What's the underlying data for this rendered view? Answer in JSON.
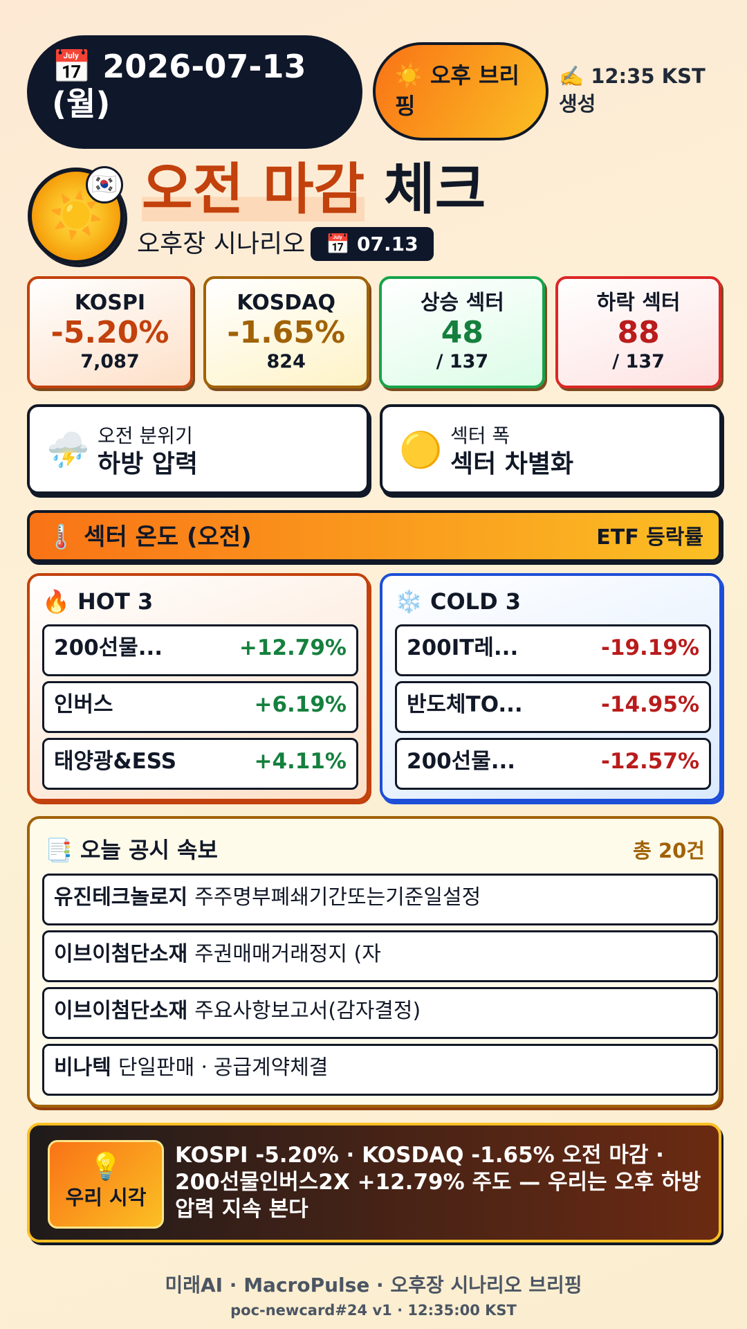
{
  "header": {
    "date": "📅 2026-07-13 (월)",
    "session": "☀️ 오후 브리핑",
    "generated": "✍️ 12:35 KST 생성"
  },
  "hero": {
    "icon": "☀️",
    "flag": "🇰🇷",
    "title_highlight": "오전 마감",
    "title_rest": "체크",
    "subtitle": "오후장 시나리오",
    "date_badge": "📅 07.13"
  },
  "stats": [
    {
      "name": "KOSPI",
      "change": "-5.20%",
      "value": "7,087"
    },
    {
      "name": "KOSDAQ",
      "change": "-1.65%",
      "value": "824"
    },
    {
      "name": "상승 섹터",
      "change": "48",
      "value": "/ 137"
    },
    {
      "name": "하락 섹터",
      "change": "88",
      "value": "/ 137"
    }
  ],
  "mood": [
    {
      "icon": "⛈️",
      "label": "오전 분위기",
      "value": "하방 압력"
    },
    {
      "icon": "🟡",
      "label": "섹터 폭",
      "value": "섹터 차별화"
    }
  ],
  "sector_bar": {
    "title": "🌡️ 섹터 온도 (오전)",
    "note": "ETF 등락률"
  },
  "hot": {
    "title": "🔥 HOT 3",
    "rows": [
      [
        "200선물...",
        "+12.79%"
      ],
      [
        "인버스",
        "+6.19%"
      ],
      [
        "태양광&ESS",
        "+4.11%"
      ]
    ]
  },
  "cold": {
    "title": "❄️ COLD 3",
    "rows": [
      [
        "200IT레...",
        "-19.19%"
      ],
      [
        "반도체TO...",
        "-14.95%"
      ],
      [
        "200선물...",
        "-12.57%"
      ]
    ]
  },
  "disclosures": {
    "title": "📑 오늘 공시 속보",
    "count": "총 20건",
    "items": [
      [
        "유진테크놀로지",
        "주주명부폐쇄기간또는기준일설정"
      ],
      [
        "이브이첨단소재",
        "주권매매거래정지 (자"
      ],
      [
        "이브이첨단소재",
        "주요사항보고서(감자결정)"
      ],
      [
        "비나텍",
        "단일판매ㆍ공급계약체결"
      ]
    ]
  },
  "view": {
    "badge_icon": "💡",
    "badge": "우리 시각",
    "text": "KOSPI -5.20% · KOSDAQ -1.65% 오전 마감 · 200선물인버스2X +12.79% 주도 — 우리는 오후 하방 압력 지속 본다"
  },
  "footer": {
    "line1": "미래AI · MacroPulse · 오후장 시나리오 브리핑",
    "line2": "poc-newcard#24 v1 · 12:35:00 KST"
  }
}
